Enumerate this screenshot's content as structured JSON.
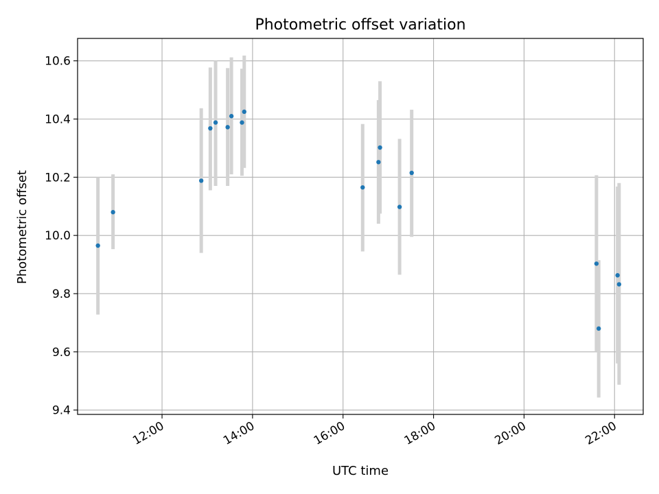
{
  "chart_data": {
    "type": "scatter",
    "title": "Photometric offset variation",
    "xlabel": "UTC time",
    "ylabel": "Photometric offset",
    "xlim": [
      "10:08",
      "22:38"
    ],
    "ylim": [
      9.385,
      10.677
    ],
    "x_ticks": [
      "12:00",
      "14:00",
      "16:00",
      "18:00",
      "20:00",
      "22:00"
    ],
    "y_ticks": [
      "9.4",
      "9.6",
      "9.8",
      "10.0",
      "10.2",
      "10.4",
      "10.6"
    ],
    "grid": true,
    "point_color": "#1f77b4",
    "errorbar_color": "#d3d3d3",
    "points": [
      {
        "t": "10:35",
        "y": 9.965,
        "lo": 9.728,
        "hi": 10.2
      },
      {
        "t": "10:55",
        "y": 10.08,
        "lo": 9.953,
        "hi": 10.21
      },
      {
        "t": "12:52",
        "y": 10.188,
        "lo": 9.94,
        "hi": 10.437
      },
      {
        "t": "13:04",
        "y": 10.368,
        "lo": 10.155,
        "hi": 10.577
      },
      {
        "t": "13:11",
        "y": 10.388,
        "lo": 10.17,
        "hi": 10.6
      },
      {
        "t": "13:27",
        "y": 10.372,
        "lo": 10.17,
        "hi": 10.575
      },
      {
        "t": "13:32",
        "y": 10.41,
        "lo": 10.21,
        "hi": 10.612
      },
      {
        "t": "13:46",
        "y": 10.388,
        "lo": 10.205,
        "hi": 10.573
      },
      {
        "t": "13:49",
        "y": 10.425,
        "lo": 10.232,
        "hi": 10.618
      },
      {
        "t": "16:26",
        "y": 10.165,
        "lo": 9.945,
        "hi": 10.383
      },
      {
        "t": "16:47",
        "y": 10.252,
        "lo": 10.04,
        "hi": 10.465
      },
      {
        "t": "16:49",
        "y": 10.302,
        "lo": 10.075,
        "hi": 10.53
      },
      {
        "t": "17:15",
        "y": 10.098,
        "lo": 9.865,
        "hi": 10.332
      },
      {
        "t": "17:31",
        "y": 10.215,
        "lo": 9.995,
        "hi": 10.432
      },
      {
        "t": "21:36",
        "y": 9.903,
        "lo": 9.6,
        "hi": 10.207
      },
      {
        "t": "21:39",
        "y": 9.68,
        "lo": 9.443,
        "hi": 9.915
      },
      {
        "t": "22:04",
        "y": 9.863,
        "lo": 9.56,
        "hi": 10.168
      },
      {
        "t": "22:06",
        "y": 9.832,
        "lo": 9.487,
        "hi": 10.18
      }
    ]
  }
}
